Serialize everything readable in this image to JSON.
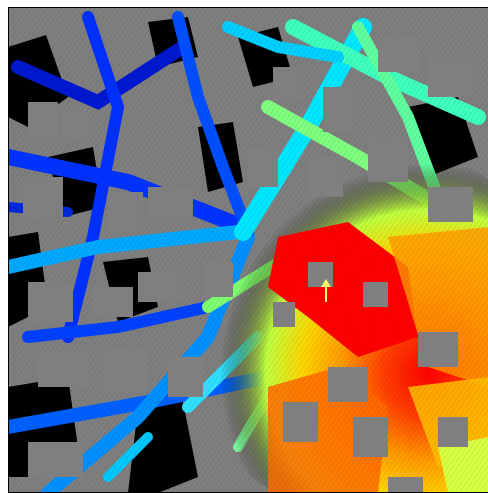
{
  "map": {
    "kind": "ray-traced signal coverage heatmap over urban building footprints",
    "background_color": "#7f7f7f",
    "building_color": "#7f7f7f",
    "void_color": "#000000",
    "colormap": "jet",
    "colormap_stops": [
      "#00008b",
      "#0000ff",
      "#00bfff",
      "#00ffff",
      "#7fff7f",
      "#ffff00",
      "#ff7f00",
      "#ff0000"
    ],
    "transmitter_marker": "arrow-up",
    "transmitter_marker_color": "#ffff66",
    "frame_color": "#000000",
    "hotspot_color": "#ff0000",
    "legend_visible": false,
    "axes_ticks_visible": false
  }
}
